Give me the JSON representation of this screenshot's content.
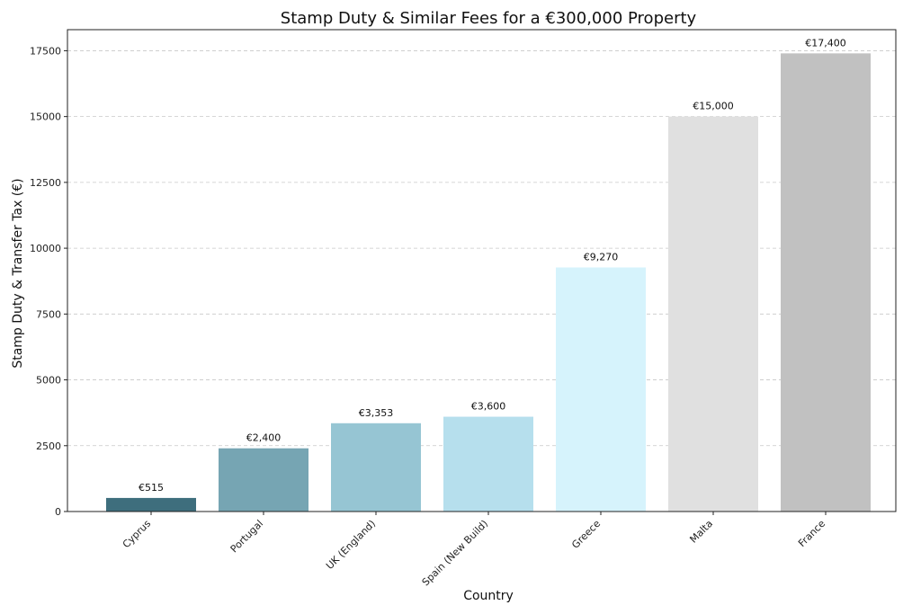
{
  "chart_data": {
    "type": "bar",
    "title": "Stamp Duty & Similar Fees for a €300,000 Property",
    "xlabel": "Country",
    "ylabel": "Stamp Duty & Transfer Tax (€)",
    "categories": [
      "Cyprus",
      "Portugal",
      "UK (England)",
      "Spain (New Build)",
      "Greece",
      "Malta",
      "France"
    ],
    "values": [
      515,
      2400,
      3353,
      3600,
      9270,
      15000,
      17400
    ],
    "data_labels": [
      "€515",
      "€2,400",
      "€3,353",
      "€3,600",
      "€9,270",
      "€15,000",
      "€17,400"
    ],
    "colors": [
      "#3e6e7d",
      "#76a5b3",
      "#96c5d3",
      "#b6dfed",
      "#d6f3fc",
      "#e0e0e0",
      "#c1c1c1"
    ],
    "ylim": [
      0,
      18300
    ],
    "yticks": [
      0,
      2500,
      5000,
      7500,
      10000,
      12500,
      15000,
      17500
    ],
    "grid": "y-dashed",
    "legend": "none"
  }
}
